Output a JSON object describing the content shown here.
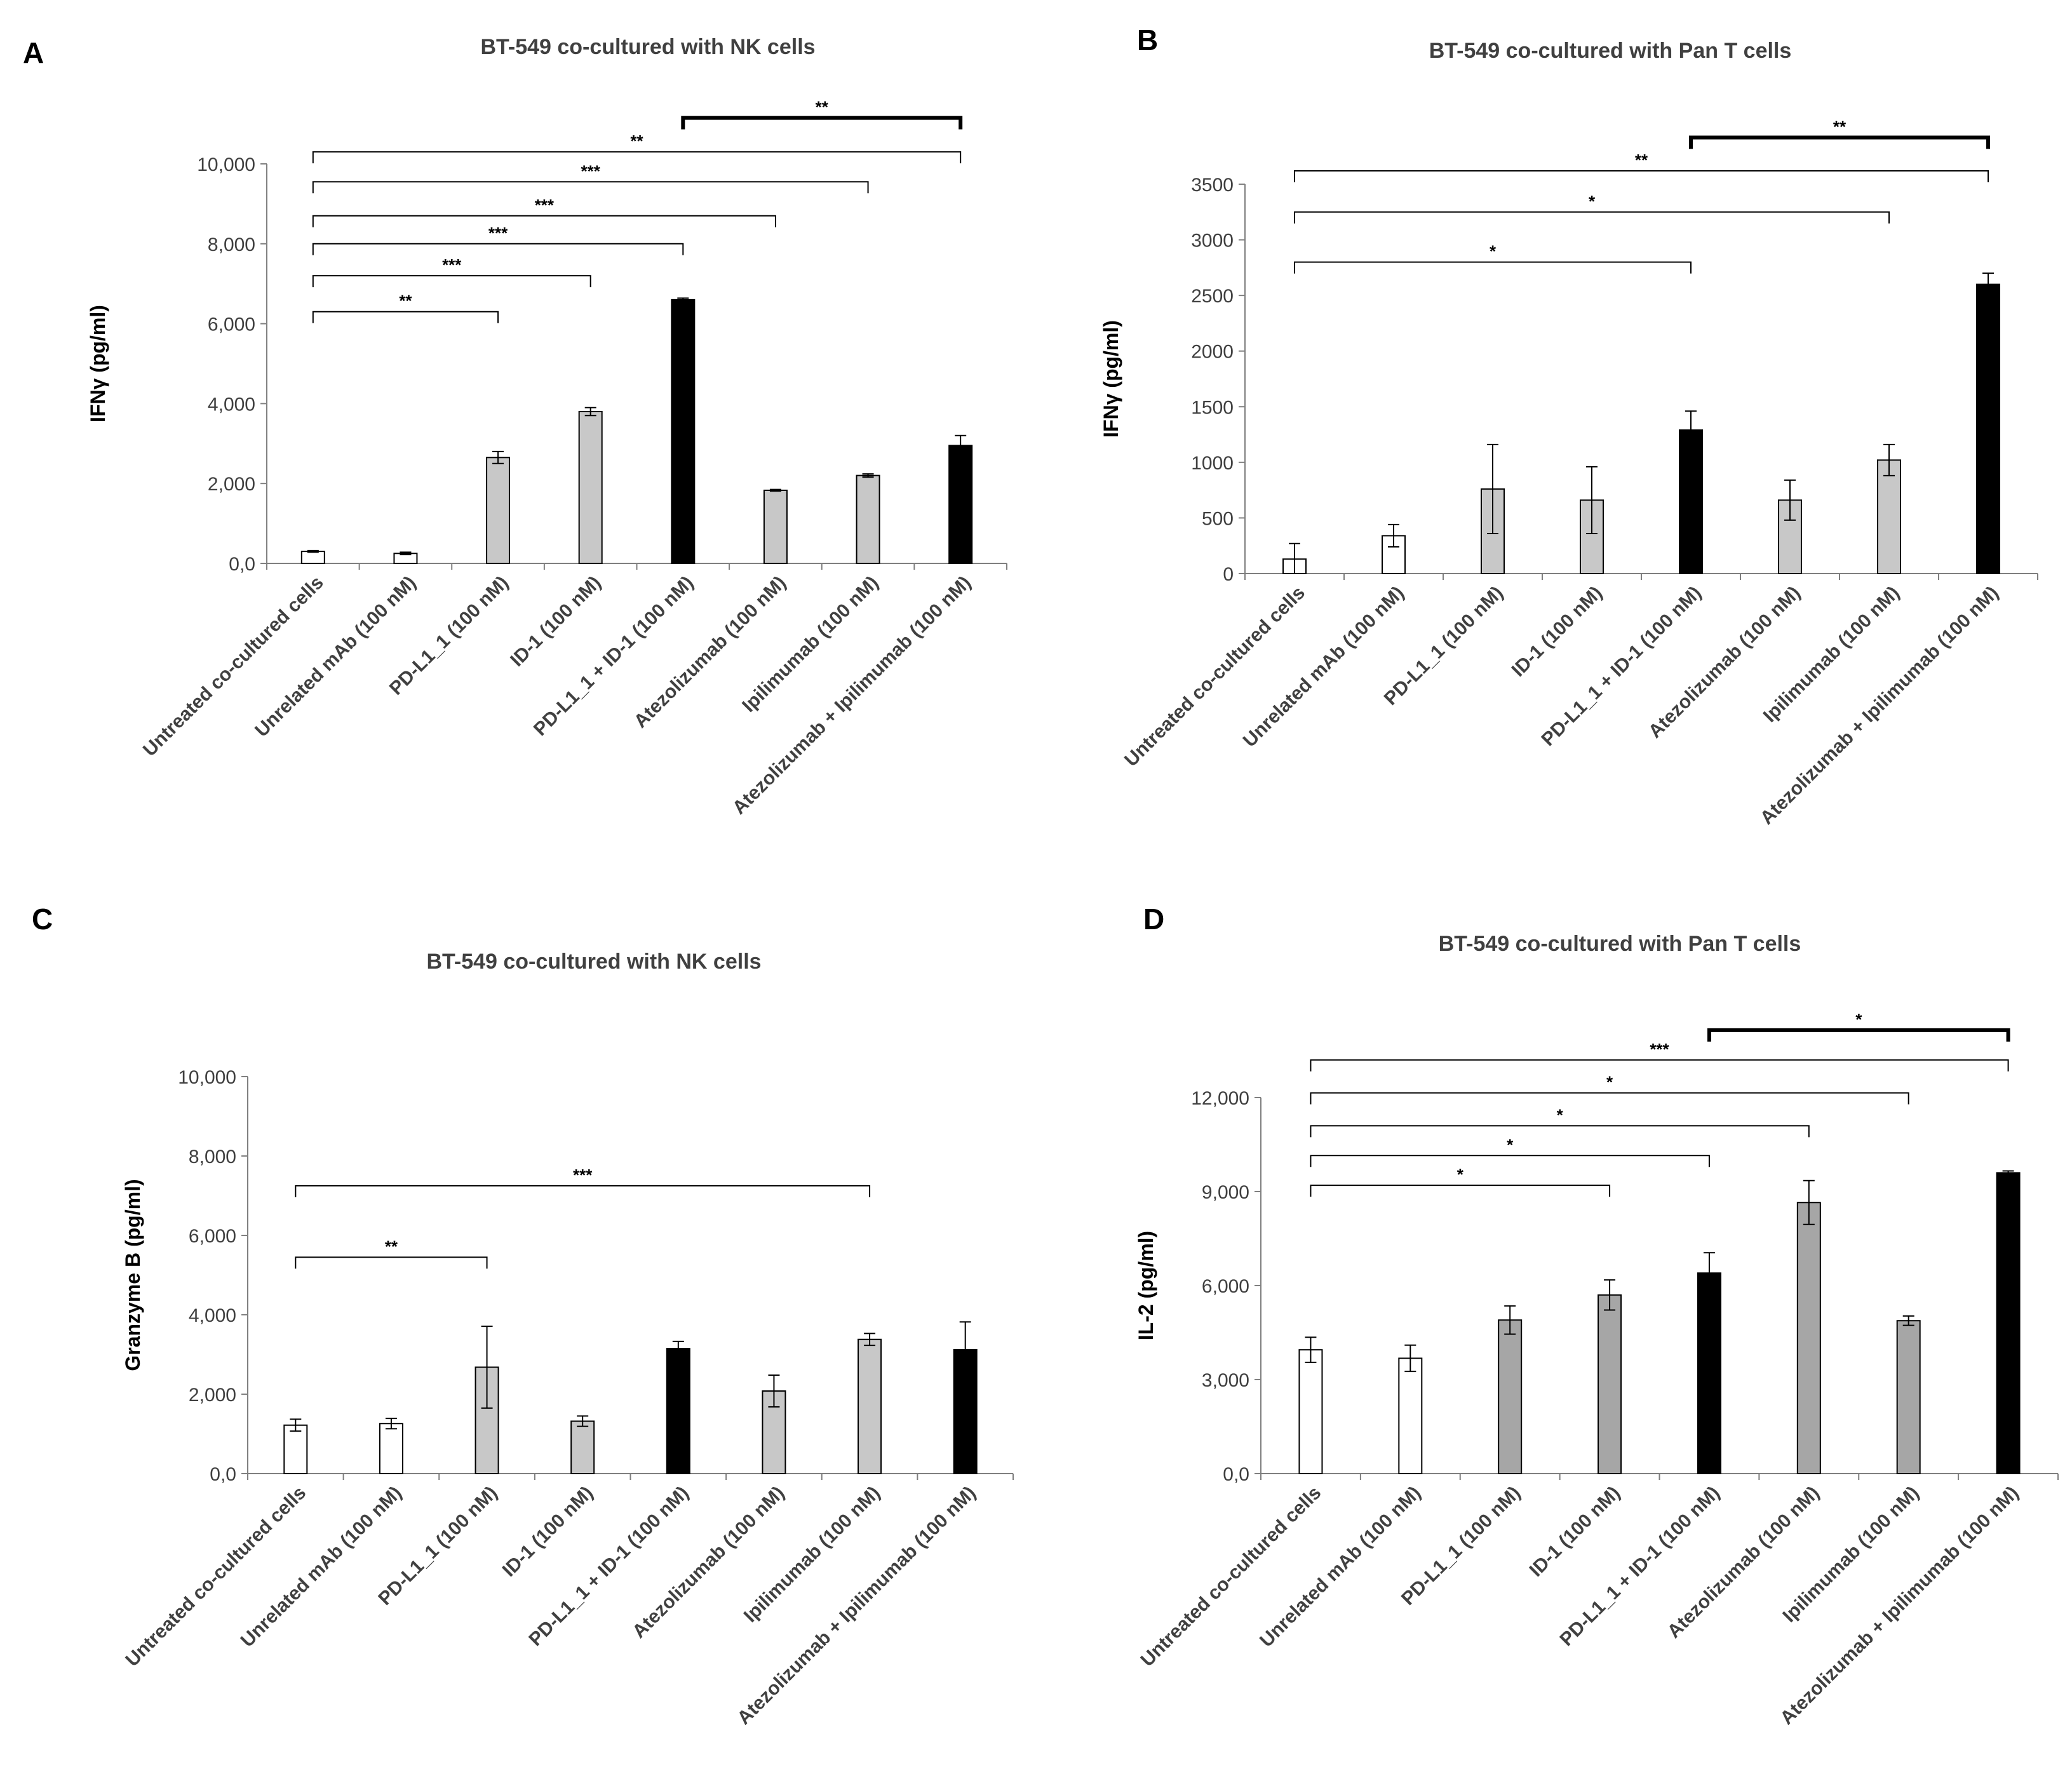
{
  "figure": {
    "categories": [
      "Untreated co-cultured cells",
      "Unrelated mAb (100 nM)",
      "PD-L1_1 (100 nM)",
      "ID-1 (100 nM)",
      "PD-L1_1 + ID-1 (100 nM)",
      "Atezolizumab (100 nM)",
      "Ipilimumab (100 nM)",
      "Atezolizumab + Ipilimumab (100 nM)"
    ],
    "colors": {
      "white": "#ffffff",
      "gray": "#c8c8c8",
      "darkgray": "#a6a6a6",
      "black": "#000000"
    }
  },
  "chart_data": [
    {
      "panel": "A",
      "type": "bar",
      "title": "BT-549 co-cultured with NK cells",
      "ylabel": "IFNγ (pg/ml)",
      "xlabel": "",
      "ylim": [
        0,
        10000
      ],
      "yticks": [
        0,
        2000,
        4000,
        6000,
        8000,
        10000
      ],
      "ytick_labels": [
        "0,0",
        "2,000",
        "4,000",
        "6,000",
        "8,000",
        "10,000"
      ],
      "values": [
        300,
        250,
        2650,
        3800,
        6600,
        1830,
        2200,
        2950
      ],
      "errors": [
        20,
        30,
        150,
        100,
        40,
        20,
        40,
        250
      ],
      "fills": [
        "white",
        "white",
        "gray",
        "gray",
        "black",
        "gray",
        "gray",
        "black"
      ],
      "significance": [
        {
          "from": 0,
          "to": 2,
          "label": "**",
          "level": 6300,
          "bold": false
        },
        {
          "from": 0,
          "to": 3,
          "label": "***",
          "level": 7200,
          "bold": false
        },
        {
          "from": 0,
          "to": 4,
          "label": "***",
          "level": 8000,
          "bold": false
        },
        {
          "from": 0,
          "to": 5,
          "label": "***",
          "level": 8700,
          "bold": false
        },
        {
          "from": 0,
          "to": 6,
          "label": "***",
          "level": 9550,
          "bold": false
        },
        {
          "from": 0,
          "to": 7,
          "label": "**",
          "level": 10300,
          "bold": false
        },
        {
          "from": 4,
          "to": 7,
          "label": "**",
          "level": 11150,
          "bold": true
        }
      ]
    },
    {
      "panel": "B",
      "type": "bar",
      "title": "BT-549 co-cultured with Pan T cells",
      "ylabel": "IFNγ (pg/ml)",
      "xlabel": "",
      "ylim": [
        0,
        3500
      ],
      "yticks": [
        0,
        500,
        1000,
        1500,
        2000,
        2500,
        3000,
        3500
      ],
      "ytick_labels": [
        "0",
        "500",
        "1000",
        "1500",
        "2000",
        "2500",
        "3000",
        "3500"
      ],
      "values": [
        130,
        340,
        760,
        660,
        1290,
        660,
        1020,
        2600
      ],
      "errors": [
        140,
        100,
        400,
        300,
        170,
        180,
        140,
        100
      ],
      "fills": [
        "white",
        "white",
        "gray",
        "gray",
        "black",
        "gray",
        "gray",
        "black"
      ],
      "significance": [
        {
          "from": 0,
          "to": 4,
          "label": "*",
          "level": 2800,
          "bold": false
        },
        {
          "from": 0,
          "to": 6,
          "label": "*",
          "level": 3250,
          "bold": false
        },
        {
          "from": 0,
          "to": 7,
          "label": "**",
          "level": 3620,
          "bold": false
        },
        {
          "from": 4,
          "to": 7,
          "label": "**",
          "level": 3920,
          "bold": true
        }
      ]
    },
    {
      "panel": "C",
      "type": "bar",
      "title": "BT-549 co-cultured with NK cells",
      "ylabel": "Granzyme B (pg/ml)",
      "xlabel": "",
      "ylim": [
        0,
        10000
      ],
      "yticks": [
        0,
        2000,
        4000,
        6000,
        8000,
        10000
      ],
      "ytick_labels": [
        "0,0",
        "2,000",
        "4,000",
        "6,000",
        "8,000",
        "10,000"
      ],
      "values": [
        1220,
        1260,
        2680,
        1320,
        3150,
        2080,
        3380,
        3120
      ],
      "errors": [
        150,
        130,
        1030,
        130,
        180,
        400,
        150,
        700
      ],
      "fills": [
        "white",
        "white",
        "gray",
        "gray",
        "black",
        "gray",
        "gray",
        "black"
      ],
      "significance": [
        {
          "from": 0,
          "to": 2,
          "label": "**",
          "level": 5450,
          "bold": false
        },
        {
          "from": 0,
          "to": 6,
          "label": "***",
          "level": 7250,
          "bold": false
        }
      ]
    },
    {
      "panel": "D",
      "type": "bar",
      "title": "BT-549 co-cultured with Pan T cells",
      "ylabel": "IL-2 (pg/ml)",
      "xlabel": "",
      "ylim": [
        0,
        12000
      ],
      "yticks": [
        0,
        3000,
        6000,
        9000,
        12000
      ],
      "ytick_labels": [
        "0,0",
        "3,000",
        "6,000",
        "9,000",
        "12,000"
      ],
      "values": [
        3950,
        3680,
        4900,
        5700,
        6400,
        8650,
        4880,
        9600
      ],
      "errors": [
        400,
        420,
        450,
        480,
        650,
        700,
        150,
        60
      ],
      "fills": [
        "white",
        "white",
        "darkgray",
        "darkgray",
        "black",
        "darkgray",
        "darkgray",
        "black"
      ],
      "significance": [
        {
          "from": 0,
          "to": 3,
          "label": "*",
          "level": 9200,
          "bold": false
        },
        {
          "from": 0,
          "to": 4,
          "label": "*",
          "level": 10150,
          "bold": false
        },
        {
          "from": 0,
          "to": 5,
          "label": "*",
          "level": 11100,
          "bold": false
        },
        {
          "from": 0,
          "to": 6,
          "label": "*",
          "level": 12150,
          "bold": false
        },
        {
          "from": 0,
          "to": 7,
          "label": "***",
          "level": 13200,
          "bold": false
        },
        {
          "from": 4,
          "to": 7,
          "label": "*",
          "level": 14150,
          "bold": true
        }
      ]
    }
  ]
}
